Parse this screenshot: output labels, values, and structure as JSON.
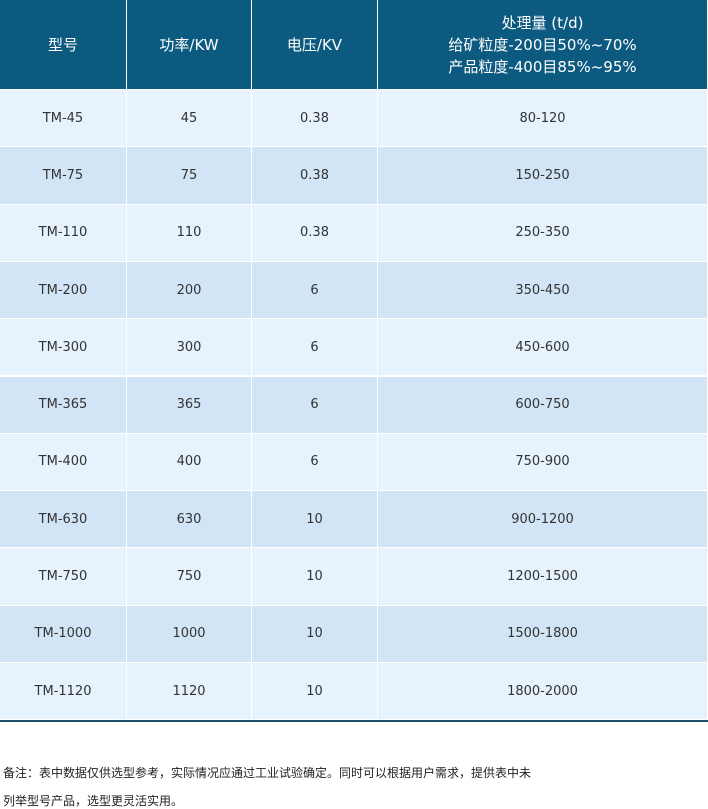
{
  "table": {
    "header": [
      "型号",
      "功率/KW",
      "电压/KV",
      [
        "处理量 (t/d)",
        "给矿粒度-200目50%~70%",
        "产品粒度-400目85%~95%"
      ]
    ],
    "rows": [
      [
        "TM-45",
        "45",
        "0.38",
        "80-120"
      ],
      [
        "TM-75",
        "75",
        "0.38",
        "150-250"
      ],
      [
        "TM-110",
        "110",
        "0.38",
        "250-350"
      ],
      [
        "TM-200",
        "200",
        "6",
        "350-450"
      ],
      [
        "TM-300",
        "300",
        "6",
        "450-600"
      ],
      [
        "TM-365",
        "365",
        "6",
        "600-750"
      ],
      [
        "TM-400",
        "400",
        "6",
        "750-900"
      ],
      [
        "TM-630",
        "630",
        "10",
        "900-1200"
      ],
      [
        "TM-750",
        "750",
        "10",
        "1200-1500"
      ],
      [
        "TM-1000",
        "1000",
        "10",
        "1500-1800"
      ],
      [
        "TM-1120",
        "1120",
        "10",
        "1800-2000"
      ]
    ]
  },
  "note": [
    "备注：表中数据仅供选型参考，实际情况应通过工业试验确定。同时可以根据用户需求，提供表中未",
    "列举型号产品，选型更灵活实用。"
  ]
}
